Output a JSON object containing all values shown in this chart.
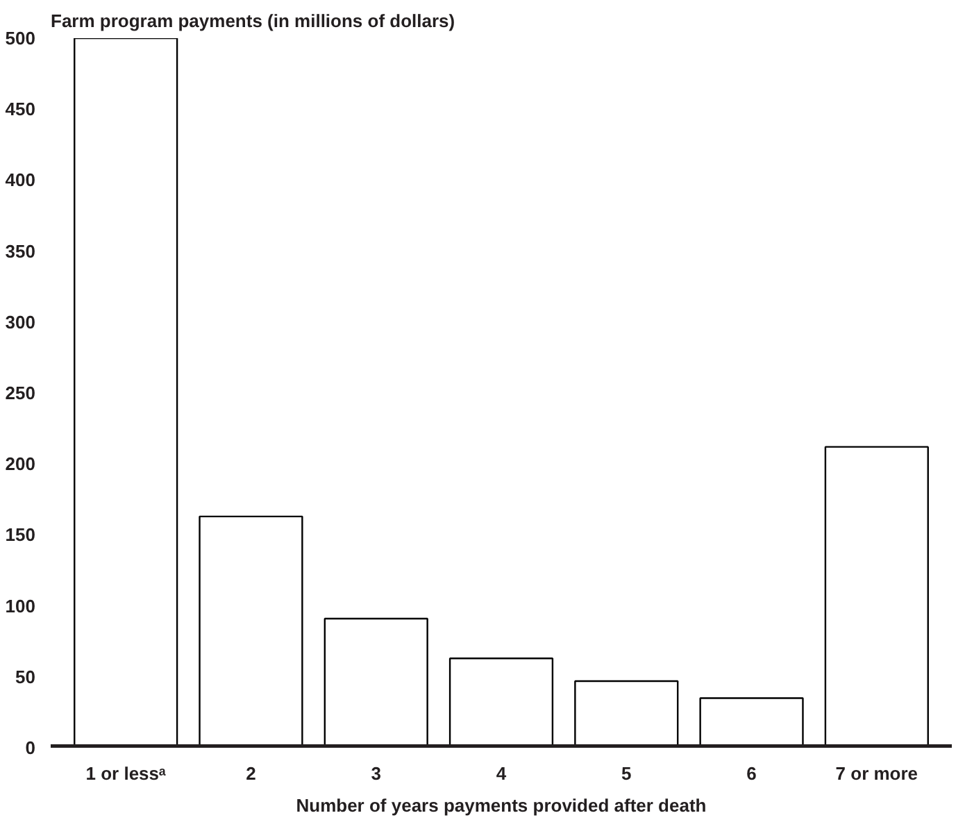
{
  "chart_data": {
    "type": "bar",
    "ylabel": "Farm program payments (in millions of dollars)",
    "xlabel": "Number of years payments provided after death",
    "categories": [
      "1 or lessᵃ",
      "2",
      "3",
      "4",
      "5",
      "6",
      "7 or more"
    ],
    "values": [
      500,
      163,
      91,
      63,
      47,
      35,
      212
    ],
    "color": "#ffffff",
    "ylim": [
      0,
      500
    ],
    "yticks": [
      0,
      50,
      100,
      150,
      200,
      250,
      300,
      350,
      400,
      450,
      500
    ],
    "grid": false
  }
}
